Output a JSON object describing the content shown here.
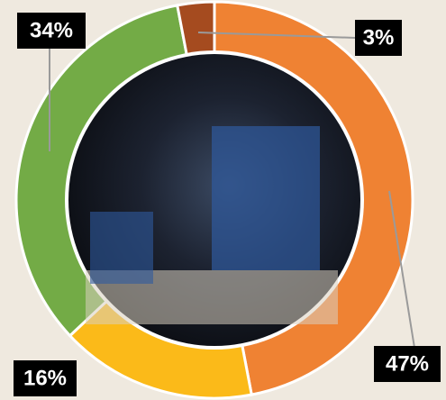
{
  "chart_data": {
    "type": "donut",
    "values": [
      47,
      16,
      34,
      3
    ],
    "value_labels": [
      "47%",
      "16%",
      "34%",
      "3%"
    ],
    "colors": [
      "#ef8233",
      "#fbba19",
      "#73ab46",
      "#a54b1f"
    ]
  }
}
